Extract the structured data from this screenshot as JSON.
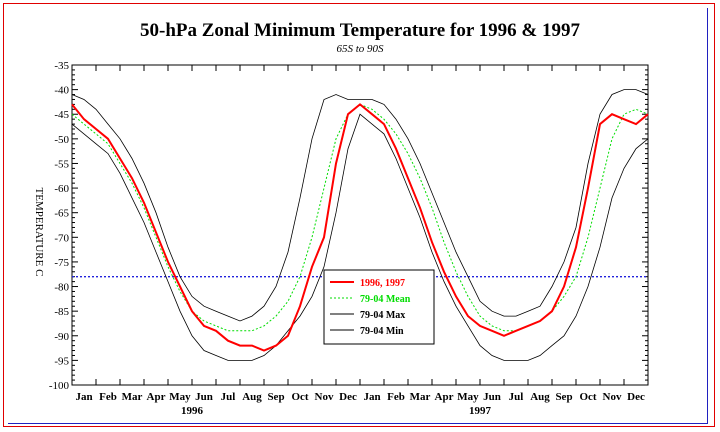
{
  "chart_data": {
    "type": "line",
    "title": "50-hPa Zonal Minimum Temperature for 1996 & 1997",
    "subtitle": "65S to 90S",
    "ylabel": "TEMPERATURE C",
    "ylim": [
      -100,
      -35
    ],
    "yticks": [
      -35,
      -40,
      -45,
      -50,
      -55,
      -60,
      -65,
      -70,
      -75,
      -80,
      -85,
      -90,
      -95,
      -100
    ],
    "month_labels": [
      "Jan",
      "Feb",
      "Mar",
      "Apr",
      "May",
      "Jun",
      "Jul",
      "Aug",
      "Sep",
      "Oct",
      "Nov",
      "Dec",
      "Jan",
      "Feb",
      "Mar",
      "Apr",
      "May",
      "Jun",
      "Jul",
      "Aug",
      "Sep",
      "Oct",
      "Nov",
      "Dec"
    ],
    "year_labels": [
      "1996",
      "1997"
    ],
    "reference_line": {
      "y": -78,
      "color": "#2222dd",
      "style": "dotted"
    },
    "legend": {
      "placement": "center",
      "entries": [
        {
          "label": "1996, 1997",
          "color": "#ff0000",
          "style": "solid"
        },
        {
          "label": "79-04 Mean",
          "color": "#00dd00",
          "style": "dotted"
        },
        {
          "label": "79-04 Max",
          "color": "#000000",
          "style": "solid"
        },
        {
          "label": "79-04 Min",
          "color": "#000000",
          "style": "solid"
        }
      ]
    },
    "x_unit": "month (0 = start of Jan 1996, 24 = end of Dec 1997)",
    "series": [
      {
        "name": "1996, 1997",
        "color": "#ff0000",
        "x": [
          0,
          0.5,
          1,
          1.5,
          2,
          2.5,
          3,
          3.5,
          4,
          4.5,
          5,
          5.5,
          6,
          6.5,
          7,
          7.5,
          8,
          8.5,
          9,
          9.5,
          10,
          10.5,
          11,
          11.5,
          12,
          12.5,
          13,
          13.5,
          14,
          14.5,
          15,
          15.5,
          16,
          16.5,
          17,
          17.5,
          18,
          18.5,
          19,
          19.5,
          20,
          20.5,
          21,
          21.5,
          22,
          22.5,
          23,
          23.5,
          24
        ],
        "y": [
          -43,
          -46,
          -48,
          -50,
          -54,
          -58,
          -63,
          -69,
          -75,
          -80,
          -85,
          -88,
          -89,
          -91,
          -92,
          -92,
          -93,
          -92,
          -90,
          -84,
          -76,
          -70,
          -55,
          -45,
          -43,
          -45,
          -47,
          -52,
          -58,
          -64,
          -71,
          -77,
          -82,
          -86,
          -88,
          -89,
          -90,
          -89,
          -88,
          -87,
          -85,
          -80,
          -72,
          -60,
          -47,
          -45,
          -46,
          -47,
          -45
        ]
      },
      {
        "name": "79-04 Mean",
        "color": "#00dd00",
        "x": [
          0,
          0.5,
          1,
          1.5,
          2,
          2.5,
          3,
          3.5,
          4,
          4.5,
          5,
          5.5,
          6,
          6.5,
          7,
          7.5,
          8,
          8.5,
          9,
          9.5,
          10,
          10.5,
          11,
          11.5,
          12,
          12.5,
          13,
          13.5,
          14,
          14.5,
          15,
          15.5,
          16,
          16.5,
          17,
          17.5,
          18,
          18.5,
          19,
          19.5,
          20,
          20.5,
          21,
          21.5,
          22,
          22.5,
          23,
          23.5,
          24
        ],
        "y": [
          -45,
          -47,
          -49,
          -51,
          -55,
          -59,
          -64,
          -70,
          -76,
          -81,
          -85,
          -87,
          -88,
          -89,
          -89,
          -89,
          -88,
          -86,
          -83,
          -78,
          -70,
          -60,
          -50,
          -45,
          -43,
          -44,
          -46,
          -49,
          -53,
          -58,
          -64,
          -71,
          -77,
          -82,
          -86,
          -88,
          -89,
          -89,
          -88,
          -87,
          -85,
          -82,
          -78,
          -70,
          -60,
          -50,
          -45,
          -44,
          -45
        ]
      },
      {
        "name": "79-04 Max",
        "color": "#000000",
        "x": [
          0,
          0.5,
          1,
          1.5,
          2,
          2.5,
          3,
          3.5,
          4,
          4.5,
          5,
          5.5,
          6,
          6.5,
          7,
          7.5,
          8,
          8.5,
          9,
          9.5,
          10,
          10.5,
          11,
          11.5,
          12,
          12.5,
          13,
          13.5,
          14,
          14.5,
          15,
          15.5,
          16,
          16.5,
          17,
          17.5,
          18,
          18.5,
          19,
          19.5,
          20,
          20.5,
          21,
          21.5,
          22,
          22.5,
          23,
          23.5,
          24
        ],
        "y": [
          -41,
          -42,
          -44,
          -47,
          -50,
          -54,
          -59,
          -65,
          -72,
          -78,
          -82,
          -84,
          -85,
          -86,
          -87,
          -86,
          -84,
          -80,
          -73,
          -62,
          -50,
          -42,
          -41,
          -42,
          -42,
          -42,
          -43,
          -46,
          -50,
          -55,
          -61,
          -67,
          -73,
          -78,
          -83,
          -85,
          -86,
          -86,
          -85,
          -84,
          -80,
          -75,
          -68,
          -55,
          -45,
          -41,
          -40,
          -40,
          -41
        ]
      },
      {
        "name": "79-04 Min",
        "color": "#000000",
        "x": [
          0,
          0.5,
          1,
          1.5,
          2,
          2.5,
          3,
          3.5,
          4,
          4.5,
          5,
          5.5,
          6,
          6.5,
          7,
          7.5,
          8,
          8.5,
          9,
          9.5,
          10,
          10.5,
          11,
          11.5,
          12,
          12.5,
          13,
          13.5,
          14,
          14.5,
          15,
          15.5,
          16,
          16.5,
          17,
          17.5,
          18,
          18.5,
          19,
          19.5,
          20,
          20.5,
          21,
          21.5,
          22,
          22.5,
          23,
          23.5,
          24
        ],
        "y": [
          -47,
          -49,
          -51,
          -53,
          -57,
          -62,
          -67,
          -73,
          -79,
          -85,
          -90,
          -93,
          -94,
          -95,
          -95,
          -95,
          -94,
          -92,
          -89,
          -86,
          -82,
          -76,
          -65,
          -52,
          -45,
          -47,
          -49,
          -54,
          -60,
          -66,
          -73,
          -79,
          -84,
          -88,
          -92,
          -94,
          -95,
          -95,
          -95,
          -94,
          -92,
          -90,
          -86,
          -80,
          -72,
          -62,
          -56,
          -52,
          -50
        ]
      }
    ]
  }
}
